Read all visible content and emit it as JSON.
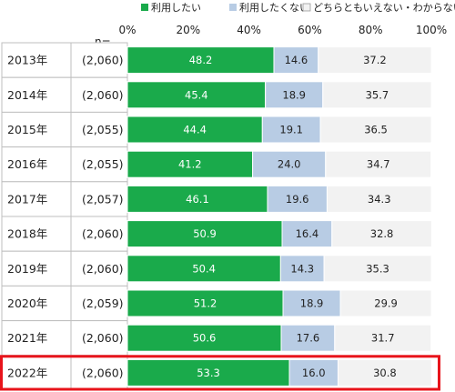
{
  "chart_data": {
    "type": "bar",
    "stacked": true,
    "orientation": "horizontal",
    "percent_axis_labels": [
      "0%",
      "20%",
      "40%",
      "60%",
      "80%",
      "100%"
    ],
    "n_label": "n=",
    "xlim": [
      0,
      100
    ],
    "legend_placement": "top",
    "categories": [
      "2013年",
      "2014年",
      "2015年",
      "2016年",
      "2017年",
      "2018年",
      "2019年",
      "2020年",
      "2021年",
      "2022年"
    ],
    "n_values": [
      "(2,060)",
      "(2,060)",
      "(2,055)",
      "(2,055)",
      "(2,057)",
      "(2,060)",
      "(2,060)",
      "(2,059)",
      "(2,060)",
      "(2,060)"
    ],
    "series": [
      {
        "name": "利用したい",
        "color": "#1aaa4b",
        "label_color": "#ffffff",
        "values": [
          48.2,
          45.4,
          44.4,
          41.2,
          46.1,
          50.9,
          50.4,
          51.2,
          50.6,
          53.3
        ]
      },
      {
        "name": "利用したくない",
        "color": "#b8cce4",
        "label_color": "#222222",
        "values": [
          14.6,
          18.9,
          19.1,
          24.0,
          19.6,
          16.4,
          14.3,
          18.9,
          17.6,
          16.0
        ]
      },
      {
        "name": "どちらともいえない・わからない",
        "color": "#f2f2f2",
        "label_color": "#222222",
        "values": [
          37.2,
          35.7,
          36.5,
          34.7,
          34.3,
          32.8,
          35.3,
          29.9,
          31.7,
          30.8
        ]
      }
    ],
    "highlight_category": "2022年",
    "highlight_color": "#e8141b",
    "grid": false
  }
}
